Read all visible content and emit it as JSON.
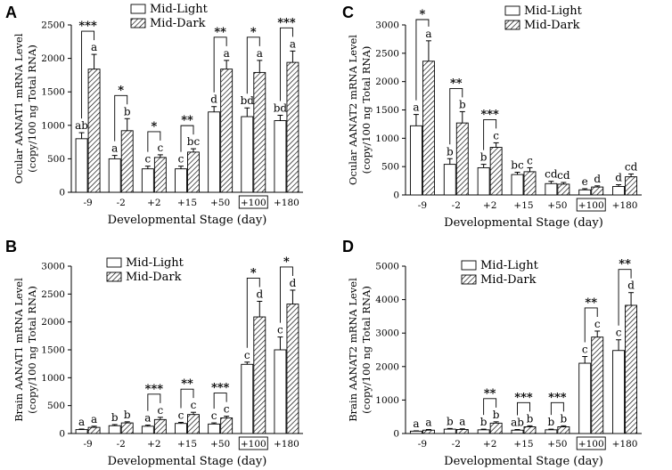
{
  "legend": {
    "light": "Mid-Light",
    "dark": "Mid-Dark"
  },
  "chart_data": [
    {
      "panel": "A",
      "type": "bar",
      "title": "",
      "xlabel": "Developmental Stage (day)",
      "ylabel": [
        "Ocular AANAT1 mRNA Level",
        "(copy/100 ng Total RNA)"
      ],
      "categories": [
        "-9",
        "-2",
        "+2",
        "+15",
        "+50",
        "+100",
        "+180"
      ],
      "boxed_category": "+100",
      "ylim": [
        0,
        2500
      ],
      "yticks": [
        0,
        500,
        1000,
        1500,
        2000,
        2500
      ],
      "legend_position": "top-left",
      "series": [
        {
          "name": "Mid-Light",
          "values": [
            800,
            500,
            350,
            350,
            1200,
            1130,
            1070
          ],
          "errors": [
            90,
            50,
            40,
            40,
            80,
            130,
            80
          ]
        },
        {
          "name": "Mid-Dark",
          "values": [
            1840,
            920,
            520,
            600,
            1840,
            1790,
            1940
          ],
          "errors": [
            220,
            180,
            40,
            50,
            130,
            180,
            170
          ]
        }
      ],
      "letters": {
        "light": [
          "ab",
          "a",
          "c",
          "c",
          "d",
          "bd",
          "bd"
        ],
        "dark": [
          "a",
          "b",
          "c",
          "bc",
          "a",
          "a",
          "a"
        ]
      },
      "significance": [
        "***",
        "*",
        "*",
        "**",
        "**",
        "*",
        "***"
      ]
    },
    {
      "panel": "C",
      "type": "bar",
      "title": "",
      "xlabel": "Developmental Stage (day)",
      "ylabel": [
        "Ocular AANAT2 mRNA Level",
        "(copy/100 ng Total RNA)"
      ],
      "categories": [
        "-9",
        "-2",
        "+2",
        "+15",
        "+50",
        "+100",
        "+180"
      ],
      "boxed_category": "+100",
      "ylim": [
        0,
        3000
      ],
      "yticks": [
        0,
        500,
        1000,
        1500,
        2000,
        2500,
        3000
      ],
      "legend_position": "top-right",
      "series": [
        {
          "name": "Mid-Light",
          "values": [
            1220,
            540,
            480,
            360,
            200,
            90,
            150
          ],
          "errors": [
            200,
            100,
            60,
            40,
            40,
            20,
            30
          ]
        },
        {
          "name": "Mid-Dark",
          "values": [
            2360,
            1270,
            840,
            410,
            190,
            140,
            320
          ],
          "errors": [
            360,
            200,
            80,
            70,
            30,
            20,
            50
          ]
        }
      ],
      "letters": {
        "light": [
          "a",
          "b",
          "b",
          "bc",
          "cd",
          "e",
          "d"
        ],
        "dark": [
          "a",
          "b",
          "c",
          "c",
          "cd",
          "d",
          "cd"
        ]
      },
      "significance": [
        "*",
        "**",
        "***",
        "",
        "",
        "",
        ""
      ]
    },
    {
      "panel": "B",
      "type": "bar",
      "title": "",
      "xlabel": "Developmental Stage (day)",
      "ylabel": [
        "Brain AANAT1 mRNA Level",
        "(copy/100 ng Total RNA)"
      ],
      "categories": [
        "-9",
        "-2",
        "+2",
        "+15",
        "+50",
        "+100",
        "+180"
      ],
      "boxed_category": "+100",
      "ylim": [
        0,
        3000
      ],
      "yticks": [
        0,
        500,
        1000,
        1500,
        2000,
        2500,
        3000
      ],
      "legend_position": "top-left",
      "series": [
        {
          "name": "Mid-Light",
          "values": [
            70,
            140,
            130,
            180,
            170,
            1240,
            1500
          ],
          "errors": [
            10,
            20,
            20,
            20,
            20,
            40,
            230
          ]
        },
        {
          "name": "Mid-Dark",
          "values": [
            110,
            190,
            250,
            340,
            280,
            2090,
            2320
          ],
          "errors": [
            20,
            20,
            40,
            40,
            30,
            280,
            250
          ]
        }
      ],
      "letters": {
        "light": [
          "a",
          "b",
          "a",
          "c",
          "c",
          "c",
          "c"
        ],
        "dark": [
          "a",
          "b",
          "c",
          "c",
          "c",
          "d",
          "d"
        ]
      },
      "significance": [
        "",
        "",
        "***",
        "**",
        "***",
        "*",
        "*"
      ]
    },
    {
      "panel": "D",
      "type": "bar",
      "title": "",
      "xlabel": "Developmental Stage (day)",
      "ylabel": [
        "Brain AANAT2 mRNA Level",
        "(copy/100 ng Total RNA)"
      ],
      "categories": [
        "-9",
        "-2",
        "+2",
        "+15",
        "+50",
        "+100",
        "+180"
      ],
      "boxed_category": "+100",
      "ylim": [
        0,
        5000
      ],
      "yticks": [
        0,
        1000,
        2000,
        3000,
        4000,
        5000
      ],
      "legend_position": "top-left",
      "series": [
        {
          "name": "Mid-Light",
          "values": [
            70,
            130,
            110,
            100,
            110,
            2100,
            2480
          ],
          "errors": [
            10,
            20,
            20,
            20,
            20,
            200,
            320
          ]
        },
        {
          "name": "Mid-Dark",
          "values": [
            100,
            120,
            310,
            200,
            200,
            2880,
            3830
          ],
          "errors": [
            20,
            20,
            40,
            30,
            30,
            180,
            380
          ]
        }
      ],
      "letters": {
        "light": [
          "a",
          "b",
          "b",
          "ab",
          "b",
          "c",
          "c"
        ],
        "dark": [
          "a",
          "a",
          "b",
          "b",
          "b",
          "c",
          "d"
        ]
      },
      "significance": [
        "",
        "",
        "**",
        "***",
        "***",
        "**",
        "**"
      ]
    }
  ]
}
